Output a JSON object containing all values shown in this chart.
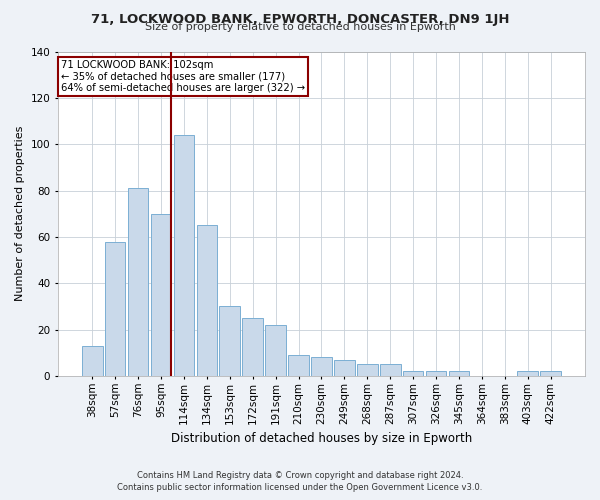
{
  "title1": "71, LOCKWOOD BANK, EPWORTH, DONCASTER, DN9 1JH",
  "title2": "Size of property relative to detached houses in Epworth",
  "xlabel": "Distribution of detached houses by size in Epworth",
  "ylabel": "Number of detached properties",
  "bar_color": "#c9d9ea",
  "bar_edge_color": "#7bafd4",
  "categories": [
    "38sqm",
    "57sqm",
    "76sqm",
    "95sqm",
    "114sqm",
    "134sqm",
    "153sqm",
    "172sqm",
    "191sqm",
    "210sqm",
    "230sqm",
    "249sqm",
    "268sqm",
    "287sqm",
    "307sqm",
    "326sqm",
    "345sqm",
    "364sqm",
    "383sqm",
    "403sqm",
    "422sqm"
  ],
  "values": [
    13,
    58,
    81,
    70,
    104,
    65,
    30,
    25,
    22,
    9,
    8,
    7,
    5,
    5,
    2,
    2,
    2,
    0,
    0,
    2,
    2
  ],
  "property_line_bin": 3.42,
  "annotation_line1": "71 LOCKWOOD BANK: 102sqm",
  "annotation_line2": "← 35% of detached houses are smaller (177)",
  "annotation_line3": "64% of semi-detached houses are larger (322) →",
  "ylim": [
    0,
    140
  ],
  "yticks": [
    0,
    20,
    40,
    60,
    80,
    100,
    120,
    140
  ],
  "footer1": "Contains HM Land Registry data © Crown copyright and database right 2024.",
  "footer2": "Contains public sector information licensed under the Open Government Licence v3.0.",
  "bg_color": "#eef2f7",
  "plot_bg_color": "#ffffff"
}
